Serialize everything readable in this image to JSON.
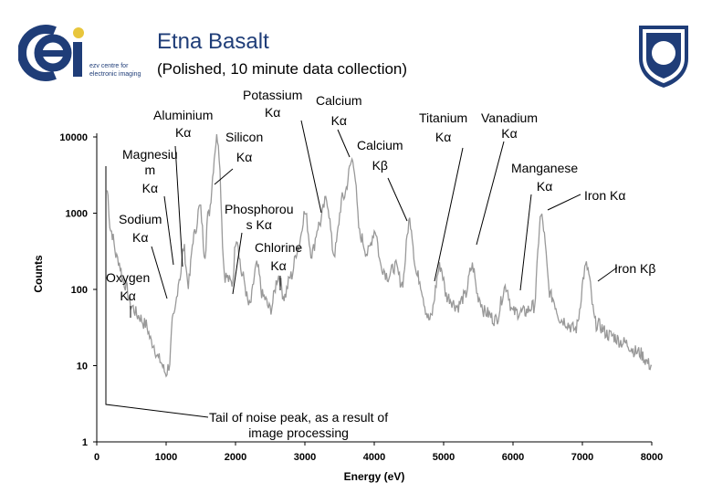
{
  "header": {
    "title": "Etna Basalt",
    "subtitle": "(Polished, 10 minute data collection)",
    "logo_left_text": [
      "ezv centre for",
      "electronic imaging"
    ]
  },
  "colors": {
    "line": "#999999",
    "title": "#1f3d78",
    "logo_blue": "#1f3d78",
    "logo_yellow": "#e8c63c"
  },
  "chart_data": {
    "type": "line",
    "title": "",
    "xlabel": "Energy (eV)",
    "ylabel": "Counts",
    "xlim": [
      0,
      8000
    ],
    "ylim": [
      1,
      10000
    ],
    "yscale": "log",
    "xticks": [
      "0",
      "1000",
      "2000",
      "3000",
      "4000",
      "5000",
      "6000",
      "7000",
      "8000"
    ],
    "yticks": [
      "1",
      "10",
      "100",
      "1000",
      "10000"
    ],
    "grid": false,
    "series": [
      {
        "x": [
          150,
          200,
          300,
          400,
          500,
          600,
          700,
          800,
          900,
          1000,
          1040,
          1100,
          1200,
          1253,
          1320,
          1400,
          1487,
          1560,
          1600,
          1740,
          1850,
          1950,
          2013,
          2100,
          2200,
          2307,
          2400,
          2500,
          2622,
          2700,
          2800,
          2900,
          3000,
          3100,
          3200,
          3313,
          3420,
          3550,
          3691,
          3800,
          3900,
          4013,
          4100,
          4200,
          4300,
          4400,
          4511,
          4620,
          4800,
          4952,
          5050,
          5200,
          5300,
          5415,
          5500,
          5600,
          5750,
          5899,
          6000,
          6150,
          6300,
          6404,
          6550,
          6700,
          6900,
          7058,
          7200,
          7400,
          7600,
          7800,
          8000
        ],
        "y": [
          2000,
          600,
          250,
          120,
          60,
          45,
          35,
          20,
          12,
          8,
          10,
          40,
          150,
          350,
          120,
          500,
          1200,
          300,
          900,
          10000,
          150,
          120,
          500,
          150,
          60,
          200,
          80,
          55,
          150,
          80,
          150,
          350,
          1000,
          300,
          700,
          1500,
          300,
          1600,
          5000,
          500,
          300,
          600,
          200,
          150,
          200,
          120,
          800,
          150,
          40,
          200,
          80,
          60,
          80,
          200,
          80,
          50,
          40,
          110,
          50,
          50,
          60,
          900,
          80,
          40,
          30,
          200,
          35,
          25,
          20,
          15,
          10
        ]
      }
    ],
    "annotations": [
      "Aluminium Kα",
      "Magnesium Kα",
      "Sodium Kα",
      "Oxygen Kα",
      "Silicon Kα",
      "Potassium Kα",
      "Calcium Kα",
      "Phosphorous Kα",
      "Chlorine Kα",
      "Calcium Kβ",
      "Titanium Kα",
      "Vanadium Kα",
      "Manganese Kα",
      "Iron Kα",
      "Iron Kβ",
      "Tail of noise peak, as a result of image processing"
    ]
  },
  "labels": {
    "aluminium": [
      "Aluminium",
      "Kα"
    ],
    "magnesium": [
      "Magnesiu",
      "m",
      "Kα"
    ],
    "sodium": [
      "Sodium",
      "Kα"
    ],
    "oxygen": [
      "Oxygen",
      "Kα"
    ],
    "silicon": [
      "Silicon",
      "Kα"
    ],
    "potassium": [
      "Potassium",
      "Kα"
    ],
    "calcium_a": [
      "Calcium",
      "Kα"
    ],
    "phosphorous": [
      "Phosphorou",
      "s Kα"
    ],
    "chlorine": [
      "Chlorine",
      "Kα"
    ],
    "calcium_b": [
      "Calcium",
      "Kβ"
    ],
    "titanium": [
      "Titanium",
      "Kα"
    ],
    "vanadium": [
      "Vanadium",
      "Kα"
    ],
    "manganese": [
      "Manganese",
      "Kα"
    ],
    "iron_a": [
      "Iron  Kα"
    ],
    "iron_b": [
      "Iron Kβ"
    ],
    "tail": [
      "Tail of noise peak, as a result of",
      "image processing"
    ]
  }
}
